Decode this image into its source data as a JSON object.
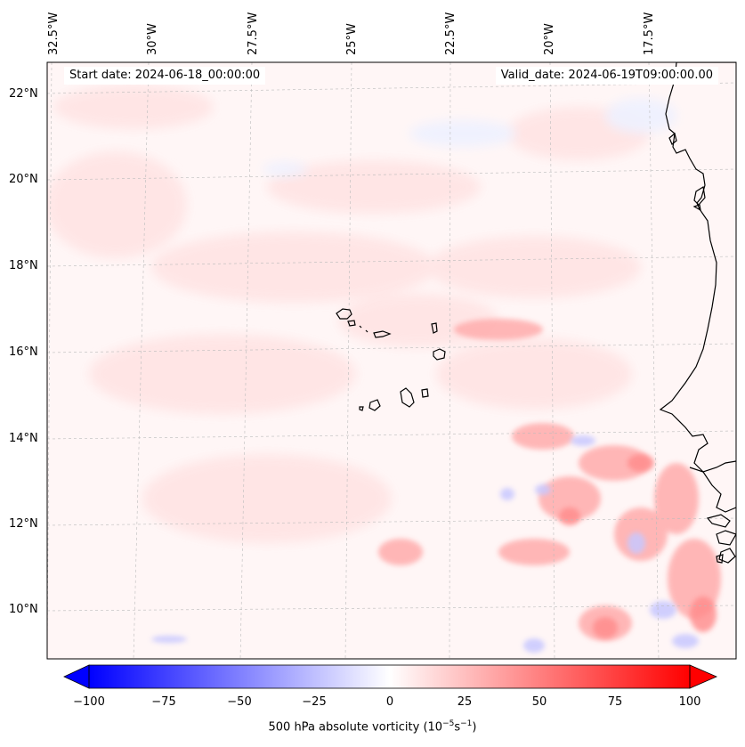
{
  "map": {
    "start_label": "Start date: 2024-06-18_00:00:00",
    "valid_label": "Valid_date: 2024-06-19T09:00:00.00",
    "lon_labels": [
      "32.5°W",
      "30°W",
      "27.5°W",
      "25°W",
      "22.5°W",
      "20°W",
      "17.5°W"
    ],
    "lat_labels": [
      "22°N",
      "20°N",
      "18°N",
      "16°N",
      "14°N",
      "12°N",
      "10°N"
    ],
    "field": "500 hPa absolute vorticity",
    "colors": {
      "positive": "#ff0000",
      "negative": "#0000ff",
      "coast": "#000000"
    }
  },
  "colorbar": {
    "ticks": [
      "−100",
      "−75",
      "−50",
      "−25",
      "0",
      "25",
      "50",
      "75",
      "100"
    ],
    "label_prefix": "500 hPa absolute vorticity (10",
    "label_exp1": "−5",
    "label_mid": "s",
    "label_exp2": "−1",
    "label_suffix": ")"
  }
}
